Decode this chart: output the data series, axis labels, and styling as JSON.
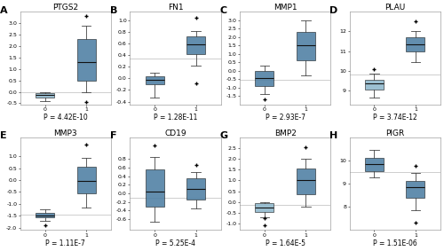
{
  "panels": [
    {
      "label": "A",
      "title": "PTGS2",
      "pvalue": "P = 4.42E-10",
      "box0": {
        "med": -0.15,
        "q1": -0.25,
        "q3": -0.05,
        "whislo": -0.4,
        "whishi": -0.0,
        "fliers": []
      },
      "box1": {
        "med": 1.3,
        "q1": 0.5,
        "q3": 2.3,
        "whislo": 0.0,
        "whishi": 2.9,
        "fliers": [
          -0.45,
          3.3
        ]
      },
      "color0": "#8fb8cc",
      "color1": "#4d7fa3",
      "ylim": [
        -0.55,
        3.5
      ],
      "yticks": [
        -0.5,
        0.0,
        0.5,
        1.0,
        1.5,
        2.0,
        2.5,
        3.0
      ],
      "hline_y": -0.03
    },
    {
      "label": "B",
      "title": "FN1",
      "pvalue": "P = 1.28E-11",
      "box0": {
        "med": -0.03,
        "q1": -0.1,
        "q3": 0.04,
        "whislo": -0.33,
        "whishi": 0.1,
        "fliers": []
      },
      "box1": {
        "med": 0.58,
        "q1": 0.42,
        "q3": 0.72,
        "whislo": 0.22,
        "whishi": 0.82,
        "fliers": [
          -0.08,
          1.05
        ]
      },
      "color0": "#4d7fa3",
      "color1": "#4d7fa3",
      "ylim": [
        -0.45,
        1.15
      ],
      "yticks": [
        -0.4,
        -0.2,
        0.0,
        0.2,
        0.4,
        0.6,
        0.8,
        1.0
      ],
      "hline_y": 0.35
    },
    {
      "label": "C",
      "title": "MMP1",
      "pvalue": "P = 2.93E-7",
      "box0": {
        "med": -0.45,
        "q1": -0.9,
        "q3": 0.0,
        "whislo": -1.4,
        "whishi": 0.3,
        "fliers": [
          -1.7
        ]
      },
      "box1": {
        "med": 1.5,
        "q1": 0.6,
        "q3": 2.3,
        "whislo": -0.25,
        "whishi": 3.0,
        "fliers": []
      },
      "color0": "#4d7fa3",
      "color1": "#4d7fa3",
      "ylim": [
        -2.0,
        3.5
      ],
      "yticks": [
        -1.5,
        -1.0,
        -0.5,
        0.0,
        0.5,
        1.0,
        1.5,
        2.0,
        2.5,
        3.0
      ],
      "hline_y": -0.55
    },
    {
      "label": "D",
      "title": "PLAU",
      "pvalue": "P = 3.74E-12",
      "box0": {
        "med": 9.35,
        "q1": 9.05,
        "q3": 9.55,
        "whislo": 8.65,
        "whishi": 9.85,
        "fliers": [
          10.1
        ]
      },
      "box1": {
        "med": 11.35,
        "q1": 11.0,
        "q3": 11.7,
        "whislo": 10.45,
        "whishi": 12.0,
        "fliers": [
          12.5
        ]
      },
      "color0": "#8fb8cc",
      "color1": "#4d7fa3",
      "ylim": [
        8.3,
        13.0
      ],
      "yticks": [
        9,
        10,
        11,
        12
      ],
      "hline_y": 9.8
    },
    {
      "label": "E",
      "title": "MMP3",
      "pvalue": "P = 1.11E-7",
      "box0": {
        "med": -1.48,
        "q1": -1.58,
        "q3": -1.38,
        "whislo": -1.7,
        "whishi": -1.25,
        "fliers": [
          -1.9
        ]
      },
      "box1": {
        "med": -0.05,
        "q1": -0.55,
        "q3": 0.55,
        "whislo": -1.15,
        "whishi": 0.95,
        "fliers": [
          1.5
        ]
      },
      "color0": "#4d7fa3",
      "color1": "#4d7fa3",
      "ylim": [
        -2.1,
        1.8
      ],
      "yticks": [
        -2.0,
        -1.5,
        -1.0,
        -0.5,
        0.0,
        0.5,
        1.0
      ],
      "hline_y": -1.45
    },
    {
      "label": "F",
      "title": "CD19",
      "pvalue": "P = 5.25E-4",
      "box0": {
        "med": 0.05,
        "q1": -0.3,
        "q3": 0.55,
        "whislo": -0.65,
        "whishi": 0.85,
        "fliers": [
          1.1
        ]
      },
      "box1": {
        "med": 0.1,
        "q1": -0.15,
        "q3": 0.35,
        "whislo": -0.35,
        "whishi": 0.5,
        "fliers": [
          0.65
        ]
      },
      "color0": "#4d7fa3",
      "color1": "#4d7fa3",
      "ylim": [
        -0.85,
        1.3
      ],
      "yticks": [
        -0.6,
        -0.4,
        -0.2,
        0.0,
        0.2,
        0.4,
        0.6,
        0.8
      ],
      "hline_y": -0.1
    },
    {
      "label": "G",
      "title": "BMP2",
      "pvalue": "P = 1.64E-5",
      "box0": {
        "med": -0.25,
        "q1": -0.45,
        "q3": -0.05,
        "whislo": -0.7,
        "whishi": -0.0,
        "fliers": [
          -1.1,
          -0.75
        ]
      },
      "box1": {
        "med": 1.0,
        "q1": 0.35,
        "q3": 1.55,
        "whislo": -0.2,
        "whishi": 2.0,
        "fliers": [
          2.55
        ]
      },
      "color0": "#8fb8cc",
      "color1": "#4d7fa3",
      "ylim": [
        -1.3,
        3.0
      ],
      "yticks": [
        -1.0,
        -0.5,
        0.0,
        0.5,
        1.0,
        1.5,
        2.0,
        2.5
      ],
      "hline_y": -0.15
    },
    {
      "label": "H",
      "title": "PIGR",
      "pvalue": "P = 1.51E-06",
      "box0": {
        "med": 9.85,
        "q1": 9.55,
        "q3": 10.1,
        "whislo": 9.25,
        "whishi": 10.45,
        "fliers": []
      },
      "box1": {
        "med": 8.85,
        "q1": 8.4,
        "q3": 9.1,
        "whislo": 7.85,
        "whishi": 9.45,
        "fliers": [
          7.3,
          9.75
        ]
      },
      "color0": "#4d7fa3",
      "color1": "#4d7fa3",
      "ylim": [
        7.0,
        11.0
      ],
      "yticks": [
        8,
        9,
        10
      ],
      "hline_y": 9.5
    }
  ],
  "bg_color": "#ffffff",
  "hline_color": "#bbbbbb",
  "fontsize_title": 6.5,
  "fontsize_panel_label": 8,
  "fontsize_tick": 4.5,
  "fontsize_pvalue": 5.5
}
